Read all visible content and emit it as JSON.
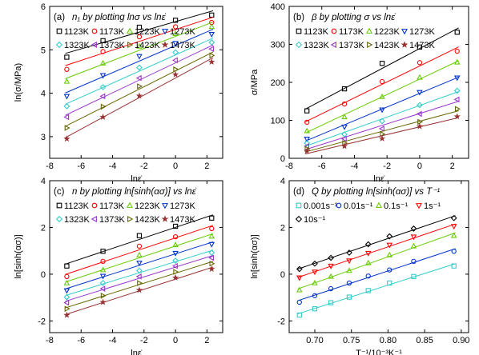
{
  "chart_data": [
    {
      "type": "scatter",
      "panel_label": "(a)",
      "title": "n₁ by plotting lnσ vs lnε̇",
      "xlabel": "lnε̇",
      "ylabel": "ln(σ/MPa)",
      "xlim": [
        -8,
        3
      ],
      "ylim": [
        2.5,
        6
      ],
      "xticks": [
        -8,
        -6,
        -4,
        -2,
        0,
        2
      ],
      "yticks": [
        3,
        4,
        5,
        6
      ],
      "x": [
        -6.91,
        -4.61,
        -2.3,
        0.0,
        2.3
      ],
      "legend_cols": 4,
      "series": [
        {
          "name": "1123K",
          "marker": "square",
          "color": "#000000",
          "values": [
            4.83,
            5.21,
            5.52,
            5.68,
            5.8
          ]
        },
        {
          "name": "1173K",
          "marker": "circle",
          "color": "#ff0000",
          "values": [
            4.55,
            4.96,
            5.3,
            5.53,
            5.63
          ]
        },
        {
          "name": "1223K",
          "marker": "triangle-up",
          "color": "#66cc00",
          "values": [
            4.27,
            4.69,
            5.08,
            5.37,
            5.53
          ]
        },
        {
          "name": "1273K",
          "marker": "triangle-down",
          "color": "#0033cc",
          "values": [
            3.93,
            4.41,
            4.85,
            5.15,
            5.36
          ]
        },
        {
          "name": "1323K",
          "marker": "diamond",
          "color": "#33cccc",
          "values": [
            3.7,
            4.14,
            4.59,
            4.94,
            5.17
          ]
        },
        {
          "name": "1373K",
          "marker": "triangle-left",
          "color": "#9933cc",
          "values": [
            3.45,
            3.93,
            4.35,
            4.76,
            5.02
          ]
        },
        {
          "name": "1423K",
          "marker": "triangle-right",
          "color": "#666600",
          "values": [
            3.2,
            3.69,
            4.16,
            4.55,
            4.87
          ]
        },
        {
          "name": "1473K",
          "marker": "star",
          "color": "#993333",
          "values": [
            2.95,
            3.45,
            3.94,
            4.43,
            4.72
          ]
        }
      ]
    },
    {
      "type": "scatter",
      "panel_label": "(b)",
      "title": "β by plotting σ vs lnε̇",
      "xlabel": "lnε̇",
      "ylabel": "σ/MPa",
      "xlim": [
        -8,
        3
      ],
      "ylim": [
        0,
        400
      ],
      "xticks": [
        -8,
        -6,
        -4,
        -2,
        0,
        2
      ],
      "yticks": [
        0,
        100,
        200,
        300,
        400
      ],
      "x": [
        -6.91,
        -4.61,
        -2.3,
        0.0,
        2.3
      ],
      "legend_cols": 4,
      "series": [
        {
          "name": "1123K",
          "marker": "square",
          "color": "#000000",
          "values": [
            125,
            183,
            250,
            293,
            332
          ]
        },
        {
          "name": "1173K",
          "marker": "circle",
          "color": "#ff0000",
          "values": [
            95,
            143,
            202,
            252,
            282
          ]
        },
        {
          "name": "1223K",
          "marker": "triangle-up",
          "color": "#66cc00",
          "values": [
            72,
            109,
            162,
            213,
            253
          ]
        },
        {
          "name": "1273K",
          "marker": "triangle-down",
          "color": "#0033cc",
          "values": [
            51,
            83,
            128,
            174,
            212
          ]
        },
        {
          "name": "1323K",
          "marker": "diamond",
          "color": "#33cccc",
          "values": [
            40,
            63,
            98,
            140,
            178
          ]
        },
        {
          "name": "1373K",
          "marker": "triangle-left",
          "color": "#9933cc",
          "values": [
            32,
            51,
            78,
            117,
            155
          ]
        },
        {
          "name": "1423K",
          "marker": "triangle-right",
          "color": "#666600",
          "values": [
            25,
            40,
            64,
            96,
            130
          ]
        },
        {
          "name": "1473K",
          "marker": "star",
          "color": "#993333",
          "values": [
            19,
            32,
            52,
            84,
            110
          ]
        }
      ]
    },
    {
      "type": "scatter",
      "panel_label": "(c)",
      "title": "n by plotting ln[sinh(ασ)] vs lnε̇",
      "xlabel": "lnε̇",
      "ylabel": "ln[sinh(ασ)]",
      "xlim": [
        -8,
        3
      ],
      "ylim": [
        -2.5,
        4
      ],
      "xticks": [
        -8,
        -6,
        -4,
        -2,
        0,
        2
      ],
      "yticks": [
        -2,
        0,
        2,
        4
      ],
      "x": [
        -6.91,
        -4.61,
        -2.3,
        0.0,
        2.3
      ],
      "legend_cols": 4,
      "series": [
        {
          "name": "1123K",
          "marker": "square",
          "color": "#000000",
          "values": [
            0.35,
            0.98,
            1.65,
            2.05,
            2.4
          ]
        },
        {
          "name": "1173K",
          "marker": "circle",
          "color": "#ff0000",
          "values": [
            -0.1,
            0.55,
            1.2,
            1.6,
            1.95
          ]
        },
        {
          "name": "1223K",
          "marker": "triangle-up",
          "color": "#66cc00",
          "values": [
            -0.38,
            0.18,
            0.82,
            1.25,
            1.62
          ]
        },
        {
          "name": "1273K",
          "marker": "triangle-down",
          "color": "#0033cc",
          "values": [
            -0.7,
            -0.08,
            0.48,
            0.9,
            1.28
          ]
        },
        {
          "name": "1323K",
          "marker": "diamond",
          "color": "#33cccc",
          "values": [
            -0.98,
            -0.38,
            0.15,
            0.58,
            0.92
          ]
        },
        {
          "name": "1373K",
          "marker": "triangle-left",
          "color": "#9933cc",
          "values": [
            -1.22,
            -0.62,
            -0.1,
            0.35,
            0.7
          ]
        },
        {
          "name": "1423K",
          "marker": "triangle-right",
          "color": "#666600",
          "values": [
            -1.48,
            -0.92,
            -0.38,
            0.1,
            0.45
          ]
        },
        {
          "name": "1473K",
          "marker": "star",
          "color": "#993333",
          "values": [
            -1.75,
            -1.2,
            -0.68,
            -0.15,
            0.22
          ]
        }
      ]
    },
    {
      "type": "scatter",
      "panel_label": "(d)",
      "title": "Q by plotting ln[sinh(ασ)] vs T⁻¹",
      "xlabel": "T⁻¹/10⁻³K⁻¹",
      "ylabel": "ln[sinh(ασ)]",
      "xlim": [
        0.665,
        0.91
      ],
      "ylim": [
        -2.5,
        4
      ],
      "xticks": [
        0.7,
        0.75,
        0.8,
        0.85,
        0.9
      ],
      "yticks": [
        -2,
        0,
        2,
        4
      ],
      "x": [
        0.679,
        0.7,
        0.722,
        0.747,
        0.773,
        0.802,
        0.835,
        0.89
      ],
      "legend_cols": 4,
      "series": [
        {
          "name": "0.001s⁻¹",
          "marker": "square",
          "color": "#33cccc",
          "values": [
            -1.75,
            -1.48,
            -1.22,
            -0.98,
            -0.7,
            -0.38,
            -0.1,
            0.35
          ]
        },
        {
          "name": "0.01s⁻¹",
          "marker": "circle",
          "color": "#0033cc",
          "values": [
            -1.2,
            -0.92,
            -0.62,
            -0.38,
            -0.08,
            0.18,
            0.55,
            0.98
          ]
        },
        {
          "name": "0.1s⁻¹",
          "marker": "triangle-up",
          "color": "#66cc00",
          "values": [
            -0.68,
            -0.38,
            -0.1,
            0.15,
            0.48,
            0.82,
            1.2,
            1.65
          ]
        },
        {
          "name": "1s⁻¹",
          "marker": "triangle-down",
          "color": "#ff0000",
          "values": [
            -0.15,
            0.1,
            0.35,
            0.58,
            0.9,
            1.25,
            1.6,
            2.05
          ]
        },
        {
          "name": "10s⁻¹",
          "marker": "diamond",
          "color": "#000000",
          "values": [
            0.22,
            0.45,
            0.7,
            0.92,
            1.28,
            1.62,
            1.95,
            2.4
          ]
        }
      ]
    }
  ]
}
